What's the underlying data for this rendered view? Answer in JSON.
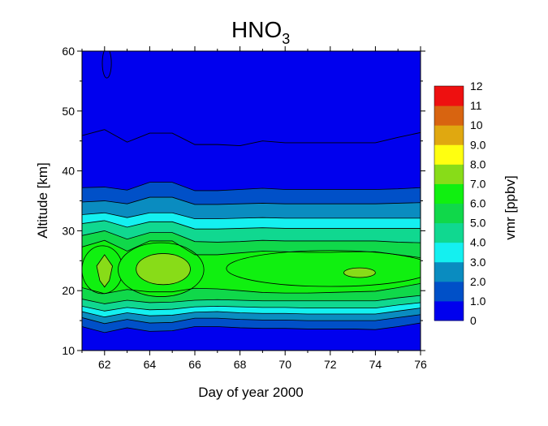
{
  "chart_data": {
    "type": "contour",
    "title": "HNO3",
    "title_main": "HNO",
    "title_subscript": "3",
    "xlabel": "Day of year 2000",
    "ylabel": "Altitude [km]",
    "colorbar_label": "vmr [ppbv]",
    "xlim": [
      61,
      76
    ],
    "ylim": [
      10,
      60
    ],
    "x_ticks": [
      62,
      64,
      66,
      68,
      70,
      72,
      74,
      76
    ],
    "y_ticks": [
      10,
      20,
      30,
      40,
      50,
      60
    ],
    "x_tick_labels": [
      "62",
      "64",
      "66",
      "68",
      "70",
      "72",
      "74",
      "76"
    ],
    "y_tick_labels": [
      "10",
      "20",
      "30",
      "40",
      "50",
      "60"
    ],
    "levels": [
      0,
      1.0,
      2.0,
      3.0,
      4.0,
      5.0,
      6.0,
      7.0,
      8.0,
      9.0,
      10,
      11,
      12
    ],
    "level_labels": [
      "0",
      "1.0",
      "2.0",
      "3.0",
      "4.0",
      "5.0",
      "6.0",
      "7.0",
      "8.0",
      "9.0",
      "10",
      "11",
      "12"
    ],
    "level_colors": [
      "#0000ee",
      "#0050c8",
      "#0a8cc0",
      "#14f0f0",
      "#10d890",
      "#10d84a",
      "#10f010",
      "#88dc18",
      "#ffff10",
      "#e0a810",
      "#d86410",
      "#ee1010"
    ],
    "contour_line_5km_values": {
      "x": [
        61,
        62,
        63,
        64,
        65,
        66,
        67,
        68,
        69,
        70,
        72,
        74,
        75,
        76
      ],
      "note_y": [
        45.9,
        46.9,
        44.8,
        46.3,
        46.3,
        44.4,
        44.4,
        44.2,
        45.0,
        44.7,
        44.7,
        44.7,
        45.6,
        46.4
      ]
    },
    "bands": {
      "x": [
        61,
        62,
        63,
        64,
        65,
        66,
        67,
        68,
        69,
        70,
        71,
        72,
        73,
        74,
        75,
        76
      ],
      "y_lower": {
        "1": [
          14.0,
          13.0,
          13.8,
          13.2,
          13.3,
          14.0,
          14.0,
          13.8,
          13.7,
          13.7,
          13.6,
          13.6,
          13.6,
          13.5,
          14.0,
          14.6
        ],
        "2": [
          15.5,
          14.5,
          15.2,
          14.6,
          14.7,
          15.4,
          15.4,
          15.2,
          15.1,
          15.1,
          15.0,
          15.0,
          15.0,
          15.0,
          15.5,
          16.0
        ],
        "3": [
          16.5,
          15.6,
          16.3,
          15.8,
          15.9,
          16.4,
          16.5,
          16.3,
          16.2,
          16.2,
          16.1,
          16.1,
          16.1,
          16.1,
          16.6,
          17.1
        ],
        "4": [
          17.4,
          16.6,
          17.2,
          16.8,
          16.9,
          17.3,
          17.4,
          17.3,
          17.2,
          17.2,
          17.1,
          17.1,
          17.1,
          17.1,
          17.6,
          18.0
        ],
        "5": [
          18.6,
          17.8,
          18.4,
          18.0,
          18.1,
          18.4,
          18.5,
          18.4,
          18.3,
          18.3,
          18.3,
          18.3,
          18.3,
          18.3,
          18.8,
          19.2
        ],
        "6": [
          20.5,
          19.5,
          20.2,
          19.8,
          19.8,
          20.4,
          20.3,
          20.0,
          19.7,
          19.6,
          19.6,
          19.7,
          19.8,
          19.9,
          20.5,
          21.2
        ]
      },
      "y_upper": {
        "6": [
          27.3,
          28.4,
          26.6,
          28.3,
          28.3,
          26.0,
          26.0,
          26.3,
          26.6,
          26.5,
          26.4,
          26.4,
          26.5,
          26.5,
          26.0,
          25.5
        ],
        "5": [
          29.2,
          30.0,
          28.6,
          29.7,
          29.7,
          28.2,
          28.1,
          28.2,
          28.4,
          28.3,
          28.3,
          28.3,
          28.3,
          28.3,
          28.1,
          28.0
        ],
        "4": [
          31.2,
          31.7,
          30.6,
          31.5,
          31.5,
          30.3,
          30.3,
          30.4,
          30.5,
          30.4,
          30.4,
          30.4,
          30.4,
          30.4,
          30.4,
          30.4
        ],
        "3": [
          32.7,
          33.0,
          32.2,
          33.0,
          33.0,
          32.0,
          32.0,
          32.1,
          32.2,
          32.1,
          32.1,
          32.1,
          32.1,
          32.1,
          32.1,
          32.1
        ],
        "2": [
          34.8,
          35.0,
          34.5,
          35.6,
          35.6,
          34.4,
          34.4,
          34.5,
          34.6,
          34.5,
          34.5,
          34.5,
          34.5,
          34.5,
          34.6,
          34.7
        ],
        "1": [
          37.2,
          37.3,
          36.8,
          38.1,
          38.1,
          36.7,
          36.7,
          36.9,
          37.1,
          36.9,
          36.9,
          36.9,
          36.9,
          36.9,
          37.0,
          37.2
        ]
      }
    },
    "islands_level7": [
      {
        "cx": 62.0,
        "cy": 23.3,
        "rx": 0.35,
        "ry": 2.7,
        "shape": "diamond"
      },
      {
        "cx": 64.6,
        "cy": 23.6,
        "rx": 1.2,
        "ry": 2.6,
        "shape": "ellipse"
      },
      {
        "cx": 73.3,
        "cy": 23.0,
        "rx": 0.7,
        "ry": 0.8,
        "shape": "ellipse"
      }
    ],
    "regions_level6": [
      {
        "cx": 61.9,
        "cy": 23.5,
        "rx": 0.9,
        "ry": 4.0
      },
      {
        "cx": 64.5,
        "cy": 23.5,
        "rx": 1.9,
        "ry": 4.5
      },
      {
        "cx": 72.0,
        "cy": 23.7,
        "rx": 4.6,
        "ry": 3.0
      }
    ],
    "top_loop": {
      "cx": 62.1,
      "cy": 58.0,
      "rx": 0.2,
      "ry": 2.5
    }
  }
}
